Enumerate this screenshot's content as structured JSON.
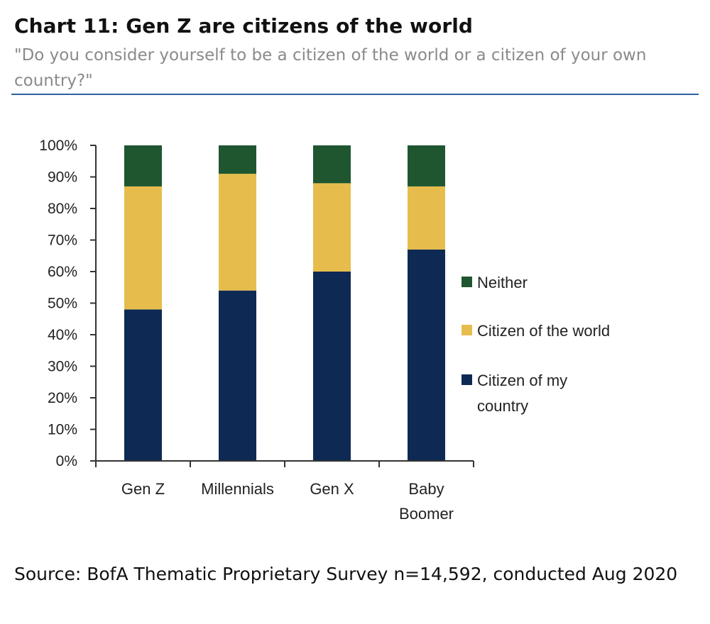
{
  "header": {
    "title": "Chart 11: Gen Z are citizens of the world",
    "subtitle": "\"Do you consider yourself to be a citizen of the world or a citizen of your own country?\""
  },
  "chart_data": {
    "type": "bar",
    "stacked": true,
    "categories": [
      "Gen Z",
      "Millennials",
      "Gen X",
      "Baby Boomer"
    ],
    "category_label_lines": [
      [
        "Gen Z"
      ],
      [
        "Millennials"
      ],
      [
        "Gen X"
      ],
      [
        "Baby",
        "Boomer"
      ]
    ],
    "series": [
      {
        "name": "Citizen of my country",
        "name_lines": [
          "Citizen of my",
          "country"
        ],
        "color": "#0e2a54",
        "values": [
          48,
          54,
          60,
          67
        ]
      },
      {
        "name": "Citizen of the world",
        "name_lines": [
          "Citizen of the world"
        ],
        "color": "#e6bd4d",
        "values": [
          39,
          37,
          28,
          20
        ]
      },
      {
        "name": "Neither",
        "name_lines": [
          "Neither"
        ],
        "color": "#1f5630",
        "values": [
          13,
          9,
          12,
          13
        ]
      }
    ],
    "y_ticks": [
      "0%",
      "10%",
      "20%",
      "30%",
      "40%",
      "50%",
      "60%",
      "70%",
      "80%",
      "90%",
      "100%"
    ],
    "ylim": [
      0,
      100
    ],
    "grid": false,
    "legend_position": "right",
    "xlabel": "",
    "ylabel": ""
  },
  "footer": {
    "source": "Source: BofA Thematic Proprietary Survey n=14,592, conducted Aug 2020"
  }
}
